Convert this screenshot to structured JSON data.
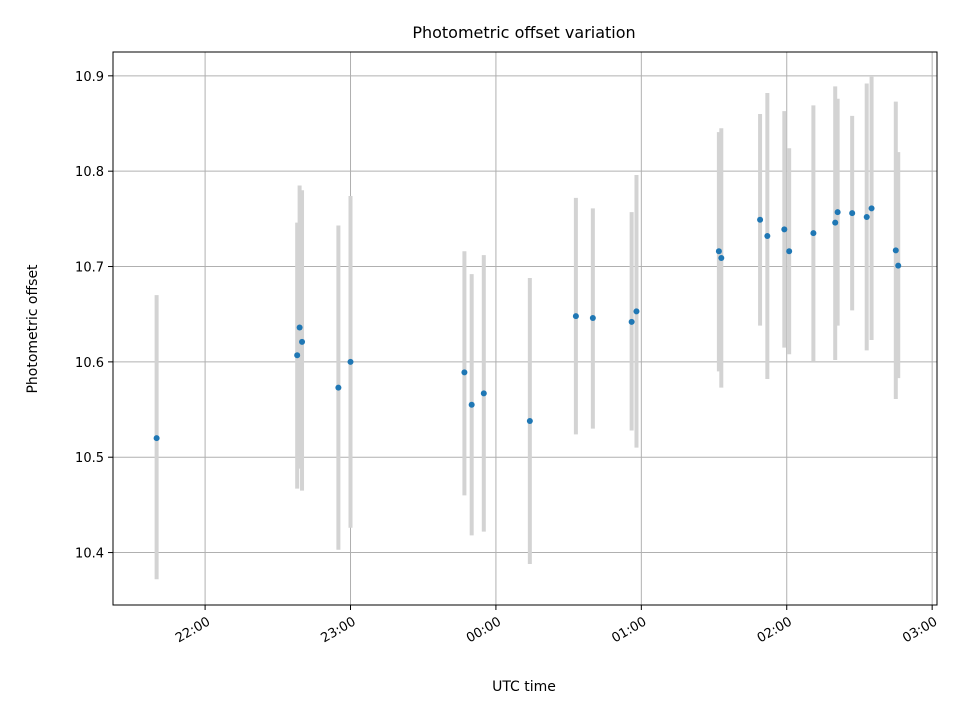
{
  "chart_data": {
    "type": "scatter",
    "title": "Photometric offset variation",
    "xlabel": "UTC time",
    "ylabel": "Photometric offset",
    "x_axis_type": "time",
    "x_reference_day": "previous",
    "xlim": [
      "21:22",
      "03:02"
    ],
    "ylim": [
      10.345,
      10.925
    ],
    "x_ticks": [
      {
        "time": "22:00",
        "label": "22:00"
      },
      {
        "time": "23:00",
        "label": "23:00"
      },
      {
        "time": "00:00",
        "label": "00:00"
      },
      {
        "time": "01:00",
        "label": "01:00"
      },
      {
        "time": "02:00",
        "label": "02:00"
      },
      {
        "time": "03:00",
        "label": "03:00"
      }
    ],
    "y_ticks": [
      {
        "value": 10.4,
        "label": "10.4"
      },
      {
        "value": 10.5,
        "label": "10.5"
      },
      {
        "value": 10.6,
        "label": "10.6"
      },
      {
        "value": 10.7,
        "label": "10.7"
      },
      {
        "value": 10.8,
        "label": "10.8"
      },
      {
        "value": 10.9,
        "label": "10.9"
      }
    ],
    "grid": true,
    "colors": {
      "points": "#1f77b4",
      "errorbars": "#d3d3d3",
      "grid": "#b0b0b0",
      "axes": "#000000"
    },
    "points": [
      {
        "time": "21:40",
        "y": 10.52,
        "err_low": 10.372,
        "err_high": 10.67
      },
      {
        "time": "22:38",
        "y": 10.607,
        "err_low": 10.467,
        "err_high": 10.746
      },
      {
        "time": "22:39",
        "y": 10.636,
        "err_low": 10.488,
        "err_high": 10.785
      },
      {
        "time": "22:40",
        "y": 10.621,
        "err_low": 10.465,
        "err_high": 10.78
      },
      {
        "time": "22:55",
        "y": 10.573,
        "err_low": 10.403,
        "err_high": 10.743
      },
      {
        "time": "23:00",
        "y": 10.6,
        "err_low": 10.426,
        "err_high": 10.774
      },
      {
        "time": "23:47",
        "y": 10.589,
        "err_low": 10.46,
        "err_high": 10.716
      },
      {
        "time": "23:50",
        "y": 10.555,
        "err_low": 10.418,
        "err_high": 10.692
      },
      {
        "time": "23:55",
        "y": 10.567,
        "err_low": 10.422,
        "err_high": 10.712
      },
      {
        "time": "00:14",
        "y": 10.538,
        "err_low": 10.388,
        "err_high": 10.688
      },
      {
        "time": "00:33",
        "y": 10.648,
        "err_low": 10.524,
        "err_high": 10.772
      },
      {
        "time": "00:40",
        "y": 10.646,
        "err_low": 10.53,
        "err_high": 10.761
      },
      {
        "time": "00:56",
        "y": 10.642,
        "err_low": 10.528,
        "err_high": 10.757
      },
      {
        "time": "00:58",
        "y": 10.653,
        "err_low": 10.51,
        "err_high": 10.796
      },
      {
        "time": "01:32",
        "y": 10.716,
        "err_low": 10.59,
        "err_high": 10.841
      },
      {
        "time": "01:33",
        "y": 10.709,
        "err_low": 10.573,
        "err_high": 10.845
      },
      {
        "time": "01:49",
        "y": 10.749,
        "err_low": 10.638,
        "err_high": 10.86
      },
      {
        "time": "01:52",
        "y": 10.732,
        "err_low": 10.582,
        "err_high": 10.882
      },
      {
        "time": "01:59",
        "y": 10.739,
        "err_low": 10.615,
        "err_high": 10.863
      },
      {
        "time": "02:01",
        "y": 10.716,
        "err_low": 10.608,
        "err_high": 10.824
      },
      {
        "time": "02:11",
        "y": 10.735,
        "err_low": 10.6,
        "err_high": 10.869
      },
      {
        "time": "02:20",
        "y": 10.746,
        "err_low": 10.602,
        "err_high": 10.889
      },
      {
        "time": "02:21",
        "y": 10.757,
        "err_low": 10.638,
        "err_high": 10.876
      },
      {
        "time": "02:27",
        "y": 10.756,
        "err_low": 10.654,
        "err_high": 10.858
      },
      {
        "time": "02:33",
        "y": 10.752,
        "err_low": 10.612,
        "err_high": 10.892
      },
      {
        "time": "02:35",
        "y": 10.761,
        "err_low": 10.623,
        "err_high": 10.899
      },
      {
        "time": "02:45",
        "y": 10.717,
        "err_low": 10.561,
        "err_high": 10.873
      },
      {
        "time": "02:46",
        "y": 10.701,
        "err_low": 10.583,
        "err_high": 10.82
      }
    ]
  }
}
